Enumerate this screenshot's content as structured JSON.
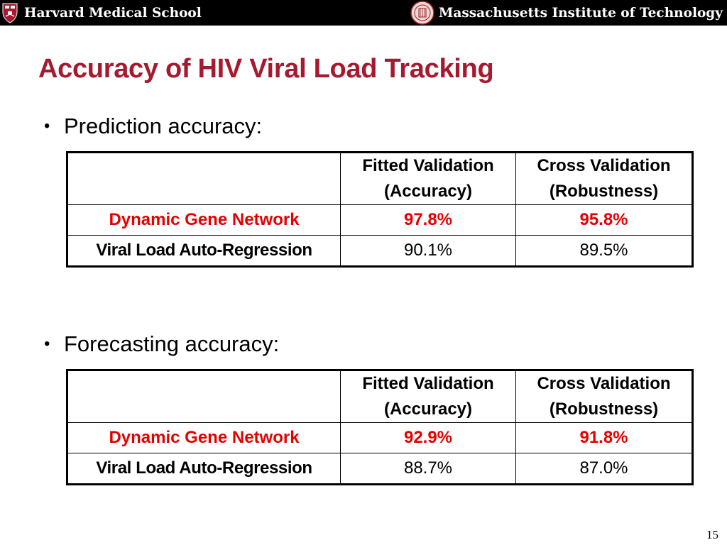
{
  "header": {
    "left_institution": "Harvard Medical School",
    "right_institution": "Massachusetts Institute of Technology"
  },
  "slide": {
    "title": "Accuracy of HIV Viral Load Tracking",
    "page_number": "15"
  },
  "sections": [
    {
      "bullet": "Prediction accuracy:",
      "table": {
        "headers": [
          "",
          "Fitted Validation\n(Accuracy)",
          "Cross Validation\n(Robustness)"
        ],
        "header_lines": [
          [
            "",
            ""
          ],
          [
            "Fitted Validation",
            "(Accuracy)"
          ],
          [
            "Cross Validation",
            "(Robustness)"
          ]
        ],
        "rows": [
          [
            "Dynamic Gene Network",
            "97.8%",
            "95.8%"
          ],
          [
            "Viral Load Auto-Regression",
            "90.1%",
            "89.5%"
          ]
        ]
      }
    },
    {
      "bullet": "Forecasting accuracy:",
      "table": {
        "headers": [
          "",
          "Fitted Validation\n(Accuracy)",
          "Cross Validation\n(Robustness)"
        ],
        "header_lines": [
          [
            "",
            ""
          ],
          [
            "Fitted Validation",
            "(Accuracy)"
          ],
          [
            "Cross Validation",
            "(Robustness)"
          ]
        ],
        "rows": [
          [
            "Dynamic Gene Network",
            "92.9%",
            "91.8%"
          ],
          [
            "Viral Load Auto-Regression",
            "88.7%",
            "87.0%"
          ]
        ]
      }
    }
  ],
  "colors": {
    "title": "#a6192e",
    "highlight": "#e60000",
    "header_bar": "#000000"
  },
  "icons": {
    "left_logo": "harvard-shield-icon",
    "right_logo": "mit-seal-icon"
  }
}
